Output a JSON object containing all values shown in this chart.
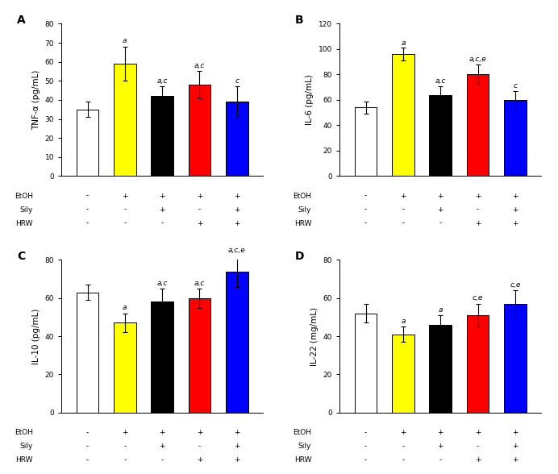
{
  "panels": [
    {
      "label": "A",
      "ylabel": "TNF-α (pg/mL)",
      "ylim": [
        0,
        80
      ],
      "yticks": [
        0,
        10,
        20,
        30,
        40,
        50,
        60,
        70,
        80
      ],
      "values": [
        35,
        59,
        42,
        48,
        39
      ],
      "errors": [
        4,
        9,
        5,
        7,
        8
      ],
      "annotations": [
        "",
        "a",
        "a,c",
        "a,c",
        "c"
      ]
    },
    {
      "label": "B",
      "ylabel": "IL-6 (pg/mL)",
      "ylim": [
        0,
        120
      ],
      "yticks": [
        0,
        20,
        40,
        60,
        80,
        100,
        120
      ],
      "values": [
        54,
        96,
        64,
        80,
        60
      ],
      "errors": [
        5,
        5,
        7,
        8,
        7
      ],
      "annotations": [
        "",
        "a",
        "a,c",
        "a,c,e",
        "c"
      ]
    },
    {
      "label": "C",
      "ylabel": "IL-10 (pg/mL)",
      "ylim": [
        0,
        80
      ],
      "yticks": [
        0,
        20,
        40,
        60,
        80
      ],
      "values": [
        63,
        47,
        58,
        60,
        74
      ],
      "errors": [
        4,
        5,
        7,
        5,
        8
      ],
      "annotations": [
        "",
        "a",
        "a,c",
        "a,c",
        "a,c,e"
      ]
    },
    {
      "label": "D",
      "ylabel": "IL-22 (mg/mL)",
      "ylim": [
        0,
        80
      ],
      "yticks": [
        0,
        20,
        40,
        60,
        80
      ],
      "values": [
        52,
        41,
        46,
        51,
        57
      ],
      "errors": [
        5,
        4,
        5,
        6,
        7
      ],
      "annotations": [
        "",
        "a",
        "a",
        "c,e",
        "c,e"
      ]
    }
  ],
  "bar_colors": [
    "white",
    "yellow",
    "black",
    "red",
    "blue"
  ],
  "bar_edgecolors": [
    "black",
    "black",
    "black",
    "black",
    "black"
  ],
  "etoh_row": [
    "-",
    "+",
    "+",
    "+",
    "+"
  ],
  "sily_row": [
    "-",
    "-",
    "+",
    "-",
    "+"
  ],
  "hrw_row": [
    "-",
    "-",
    "-",
    "+",
    "+"
  ],
  "row_labels": [
    "EtOH",
    "Sily",
    "HRW"
  ],
  "annotation_fontsize": 6.5,
  "ylabel_fontsize": 7.5,
  "tick_fontsize": 6.5,
  "panel_label_fontsize": 10,
  "row_label_fontsize": 6.5,
  "row_value_fontsize": 6.5,
  "bar_width": 0.6
}
